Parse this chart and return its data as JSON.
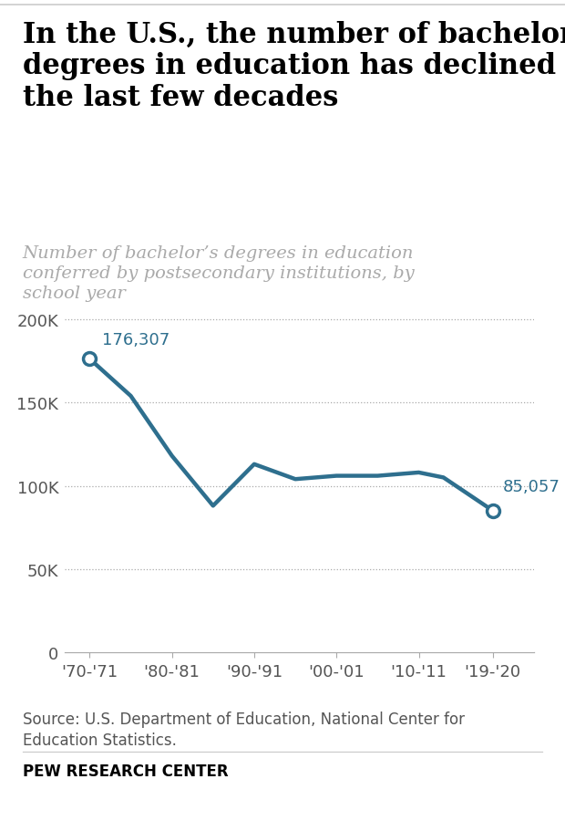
{
  "title": "In the U.S., the number of bachelor’s\ndegrees in education has declined over\nthe last few decades",
  "subtitle": "Number of bachelor’s degrees in education\nconferred by postsecondary institutions, by\nschool year",
  "x_labels": [
    "'70-'71",
    "'80-'81",
    "'90-'91",
    "'00-'01",
    "'10-'11",
    "'19-'20"
  ],
  "data_points": [
    [
      1970,
      176307
    ],
    [
      1975,
      154000
    ],
    [
      1980,
      118000
    ],
    [
      1985,
      88000
    ],
    [
      1990,
      113000
    ],
    [
      1995,
      104000
    ],
    [
      2000,
      106000
    ],
    [
      2005,
      106000
    ],
    [
      2010,
      108000
    ],
    [
      2013,
      105000
    ],
    [
      2019,
      85057
    ]
  ],
  "line_color": "#2e6f8e",
  "line_width": 3.2,
  "annotation_color": "#2e6f8e",
  "ytick_values": [
    0,
    50000,
    100000,
    150000,
    200000
  ],
  "source_text": "Source: U.S. Department of Education, National Center for\nEducation Statistics.",
  "footer_text": "PEW RESEARCH CENTER",
  "title_fontsize": 22,
  "subtitle_fontsize": 14,
  "annotation_fontsize": 13,
  "tick_fontsize": 13,
  "source_fontsize": 12,
  "footer_fontsize": 12,
  "background_color": "#ffffff",
  "grid_color": "#aaaaaa",
  "title_color": "#000000",
  "subtitle_color": "#aaaaaa",
  "ylim": [
    0,
    220000
  ],
  "xlim_left": 1967,
  "xlim_right": 2024
}
